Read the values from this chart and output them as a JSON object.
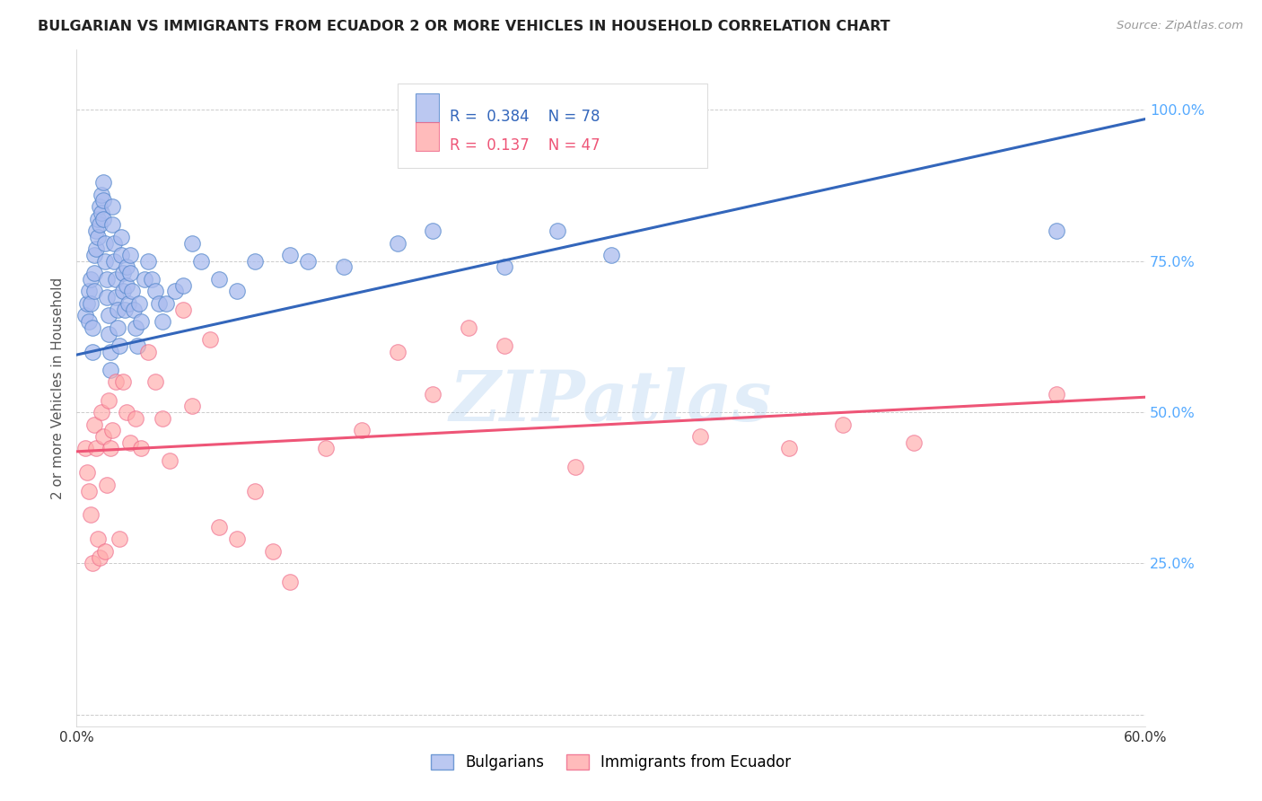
{
  "title": "BULGARIAN VS IMMIGRANTS FROM ECUADOR 2 OR MORE VEHICLES IN HOUSEHOLD CORRELATION CHART",
  "source": "Source: ZipAtlas.com",
  "ylabel": "2 or more Vehicles in Household",
  "xlim": [
    0.0,
    0.6
  ],
  "ylim": [
    -0.02,
    1.1
  ],
  "yticks": [
    0.0,
    0.25,
    0.5,
    0.75,
    1.0
  ],
  "ytick_labels": [
    "",
    "25.0%",
    "50.0%",
    "75.0%",
    "100.0%"
  ],
  "xticks": [
    0.0,
    0.1,
    0.2,
    0.3,
    0.4,
    0.5,
    0.6
  ],
  "xtick_labels": [
    "0.0%",
    "",
    "",
    "",
    "",
    "",
    "60.0%"
  ],
  "legend_labels": [
    "Bulgarians",
    "Immigrants from Ecuador"
  ],
  "R_bulgarian": 0.384,
  "N_bulgarian": 78,
  "R_ecuador": 0.137,
  "N_ecuador": 47,
  "blue_fill": "#AABBEE",
  "blue_edge": "#5588CC",
  "pink_fill": "#FFAAAA",
  "pink_edge": "#EE6688",
  "blue_line": "#3366BB",
  "pink_line": "#EE5577",
  "right_tick_color": "#55AAFF",
  "watermark": "ZIPatlas",
  "watermark_color": "#AACCEE",
  "title_color": "#222222",
  "grid_color": "#CCCCCC",
  "blue_trend_x0": 0.0,
  "blue_trend_x1": 0.6,
  "blue_trend_y0": 0.595,
  "blue_trend_y1": 0.985,
  "pink_trend_x0": 0.0,
  "pink_trend_x1": 0.6,
  "pink_trend_y0": 0.435,
  "pink_trend_y1": 0.525,
  "blue_x": [
    0.005,
    0.006,
    0.007,
    0.007,
    0.008,
    0.008,
    0.009,
    0.009,
    0.01,
    0.01,
    0.01,
    0.011,
    0.011,
    0.012,
    0.012,
    0.013,
    0.013,
    0.014,
    0.014,
    0.015,
    0.015,
    0.015,
    0.016,
    0.016,
    0.017,
    0.017,
    0.018,
    0.018,
    0.019,
    0.019,
    0.02,
    0.02,
    0.021,
    0.021,
    0.022,
    0.022,
    0.023,
    0.023,
    0.024,
    0.025,
    0.025,
    0.026,
    0.026,
    0.027,
    0.028,
    0.028,
    0.029,
    0.03,
    0.03,
    0.031,
    0.032,
    0.033,
    0.034,
    0.035,
    0.036,
    0.038,
    0.04,
    0.042,
    0.044,
    0.046,
    0.048,
    0.05,
    0.055,
    0.06,
    0.065,
    0.07,
    0.08,
    0.09,
    0.1,
    0.12,
    0.13,
    0.15,
    0.18,
    0.2,
    0.24,
    0.27,
    0.3,
    0.55
  ],
  "blue_y": [
    0.66,
    0.68,
    0.7,
    0.65,
    0.72,
    0.68,
    0.64,
    0.6,
    0.76,
    0.73,
    0.7,
    0.8,
    0.77,
    0.82,
    0.79,
    0.84,
    0.81,
    0.86,
    0.83,
    0.88,
    0.85,
    0.82,
    0.78,
    0.75,
    0.72,
    0.69,
    0.66,
    0.63,
    0.6,
    0.57,
    0.84,
    0.81,
    0.78,
    0.75,
    0.72,
    0.69,
    0.67,
    0.64,
    0.61,
    0.79,
    0.76,
    0.73,
    0.7,
    0.67,
    0.74,
    0.71,
    0.68,
    0.76,
    0.73,
    0.7,
    0.67,
    0.64,
    0.61,
    0.68,
    0.65,
    0.72,
    0.75,
    0.72,
    0.7,
    0.68,
    0.65,
    0.68,
    0.7,
    0.71,
    0.78,
    0.75,
    0.72,
    0.7,
    0.75,
    0.76,
    0.75,
    0.74,
    0.78,
    0.8,
    0.74,
    0.8,
    0.76,
    0.8
  ],
  "pink_x": [
    0.005,
    0.006,
    0.007,
    0.008,
    0.009,
    0.01,
    0.011,
    0.012,
    0.013,
    0.014,
    0.015,
    0.016,
    0.017,
    0.018,
    0.019,
    0.02,
    0.022,
    0.024,
    0.026,
    0.028,
    0.03,
    0.033,
    0.036,
    0.04,
    0.044,
    0.048,
    0.052,
    0.06,
    0.065,
    0.075,
    0.08,
    0.09,
    0.1,
    0.11,
    0.12,
    0.14,
    0.16,
    0.18,
    0.2,
    0.22,
    0.24,
    0.28,
    0.35,
    0.4,
    0.43,
    0.47,
    0.55
  ],
  "pink_y": [
    0.44,
    0.4,
    0.37,
    0.33,
    0.25,
    0.48,
    0.44,
    0.29,
    0.26,
    0.5,
    0.46,
    0.27,
    0.38,
    0.52,
    0.44,
    0.47,
    0.55,
    0.29,
    0.55,
    0.5,
    0.45,
    0.49,
    0.44,
    0.6,
    0.55,
    0.49,
    0.42,
    0.67,
    0.51,
    0.62,
    0.31,
    0.29,
    0.37,
    0.27,
    0.22,
    0.44,
    0.47,
    0.6,
    0.53,
    0.64,
    0.61,
    0.41,
    0.46,
    0.44,
    0.48,
    0.45,
    0.53
  ]
}
